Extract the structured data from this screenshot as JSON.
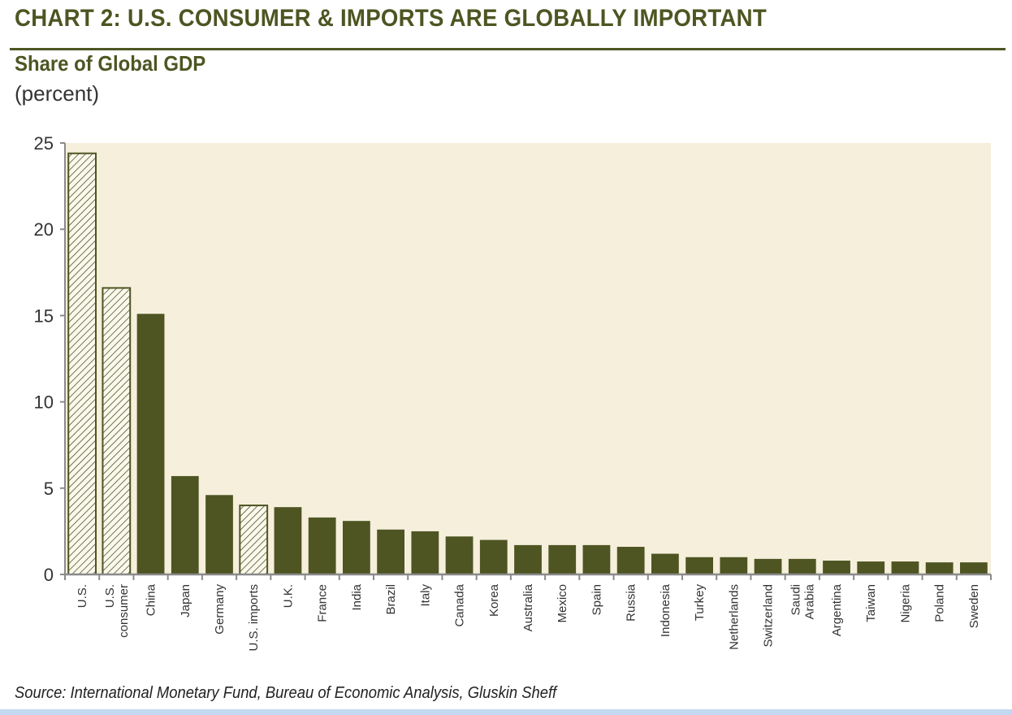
{
  "header": {
    "title": "CHART 2: U.S. CONSUMER & IMPORTS ARE GLOBALLY IMPORTANT",
    "subtitle": "Share of Global GDP",
    "unit": "(percent)"
  },
  "footer": {
    "source": "Source: International Monetary Fund, Bureau of Economic Analysis, Gluskin Sheff"
  },
  "colors": {
    "accent": "#4e5522",
    "plot_background": "#f5efdc",
    "hatched_fill": "#fbf8ee",
    "axis": "#8a8a8a"
  },
  "chart_data": {
    "type": "bar",
    "title": "Share of Global GDP",
    "ylabel": "(percent)",
    "xlabel": "",
    "ylim": [
      0,
      25
    ],
    "yticks": [
      0,
      5,
      10,
      15,
      20,
      25
    ],
    "grid": false,
    "legend": "none",
    "categories": [
      "U.S.",
      "U.S. consumer",
      "China",
      "Japan",
      "Germany",
      "U.S. imports",
      "U.K.",
      "France",
      "India",
      "Brazil",
      "Italy",
      "Canada",
      "Korea",
      "Australia",
      "Mexico",
      "Spain",
      "Russia",
      "Indonesia",
      "Turkey",
      "Netherlands",
      "Switzerland",
      "Saudi Arabia",
      "Argentina",
      "Taiwan",
      "Nigeria",
      "Poland",
      "Sweden"
    ],
    "category_label_lines": [
      [
        "U.S."
      ],
      [
        "U.S.",
        "consumer"
      ],
      [
        "China"
      ],
      [
        "Japan"
      ],
      [
        "Germany"
      ],
      [
        "U.S. imports"
      ],
      [
        "U.K."
      ],
      [
        "France"
      ],
      [
        "India"
      ],
      [
        "Brazil"
      ],
      [
        "Italy"
      ],
      [
        "Canada"
      ],
      [
        "Korea"
      ],
      [
        "Australia"
      ],
      [
        "Mexico"
      ],
      [
        "Spain"
      ],
      [
        "Russia"
      ],
      [
        "Indonesia"
      ],
      [
        "Turkey"
      ],
      [
        "Netherlands"
      ],
      [
        "Switzerland"
      ],
      [
        "Saudi",
        "Arabia"
      ],
      [
        "Argentina"
      ],
      [
        "Taiwan"
      ],
      [
        "Nigeria"
      ],
      [
        "Poland"
      ],
      [
        "Sweden"
      ]
    ],
    "values": [
      24.4,
      16.6,
      15.1,
      5.7,
      4.6,
      4.0,
      3.9,
      3.3,
      3.1,
      2.6,
      2.5,
      2.2,
      2.0,
      1.7,
      1.7,
      1.7,
      1.6,
      1.2,
      1.0,
      1.0,
      0.9,
      0.9,
      0.8,
      0.75,
      0.75,
      0.7,
      0.7
    ],
    "hatched": [
      true,
      true,
      false,
      false,
      false,
      true,
      false,
      false,
      false,
      false,
      false,
      false,
      false,
      false,
      false,
      false,
      false,
      false,
      false,
      false,
      false,
      false,
      false,
      false,
      false,
      false,
      false
    ]
  }
}
